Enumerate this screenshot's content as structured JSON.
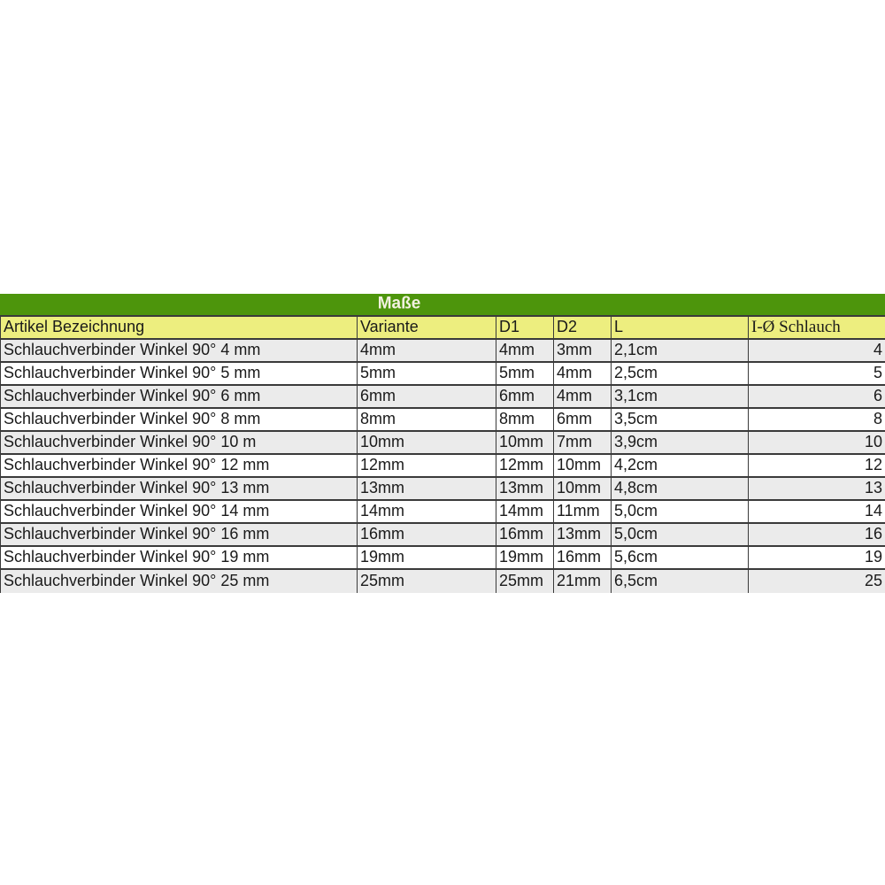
{
  "table": {
    "title": "Maße",
    "columns": [
      "Artikel Bezeichnung",
      "Variante",
      "D1",
      "D2",
      "L",
      "I-Ø Schlauch"
    ],
    "rows": [
      [
        "Schlauchverbinder Winkel 90° 4 mm",
        "4mm",
        "4mm",
        "3mm",
        "2,1cm",
        "4"
      ],
      [
        "Schlauchverbinder Winkel 90° 5 mm",
        "5mm",
        "5mm",
        "4mm",
        "2,5cm",
        "5"
      ],
      [
        "Schlauchverbinder Winkel 90° 6 mm",
        "6mm",
        "6mm",
        "4mm",
        "3,1cm",
        "6"
      ],
      [
        "Schlauchverbinder Winkel 90° 8 mm",
        "8mm",
        "8mm",
        "6mm",
        "3,5cm",
        "8"
      ],
      [
        "Schlauchverbinder Winkel 90° 10 m",
        "10mm",
        "10mm",
        "7mm",
        "3,9cm",
        "10"
      ],
      [
        "Schlauchverbinder Winkel 90° 12 mm",
        "12mm",
        "12mm",
        "10mm",
        "4,2cm",
        "12"
      ],
      [
        "Schlauchverbinder Winkel 90° 13 mm",
        "13mm",
        "13mm",
        "10mm",
        "4,8cm",
        "13"
      ],
      [
        "Schlauchverbinder Winkel 90° 14 mm",
        "14mm",
        "14mm",
        "11mm",
        "5,0cm",
        "14"
      ],
      [
        "Schlauchverbinder Winkel 90° 16 mm",
        "16mm",
        "16mm",
        "13mm",
        "5,0cm",
        "16"
      ],
      [
        "Schlauchverbinder Winkel 90° 19 mm",
        "19mm",
        "19mm",
        "16mm",
        "5,6cm",
        "19"
      ],
      [
        "Schlauchverbinder Winkel 90° 25 mm",
        "25mm",
        "25mm",
        "21mm",
        "6,5cm",
        "25"
      ]
    ],
    "colors": {
      "title_bg": "#4d950c",
      "title_text": "#f2f1df",
      "header_bg": "#edee7f",
      "row_even_bg": "#ebebeb",
      "row_odd_bg": "#ffffff",
      "border": "#3a3a3a"
    }
  }
}
